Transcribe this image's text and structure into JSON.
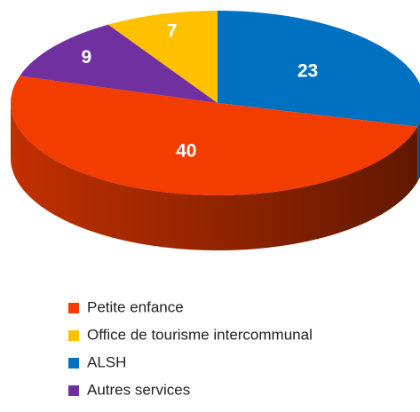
{
  "chart_data": {
    "type": "pie",
    "categories": [
      "Petite enfance",
      "Office de tourisme intercommunal",
      "ALSH",
      "Autres services"
    ],
    "values": [
      40,
      7,
      23,
      9
    ],
    "colors": [
      "#f23c00",
      "#ffc000",
      "#0070c0",
      "#7030a0"
    ]
  }
}
